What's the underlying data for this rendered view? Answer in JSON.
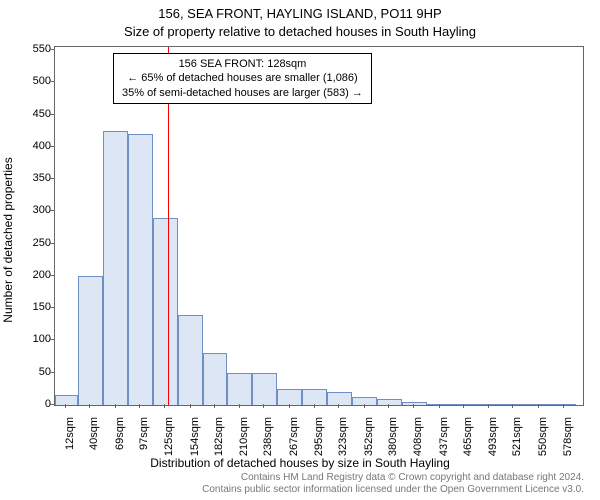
{
  "title_main": "156, SEA FRONT, HAYLING ISLAND, PO11 9HP",
  "title_sub": "Size of property relative to detached houses in South Hayling",
  "y_axis_title": "Number of detached properties",
  "x_axis_title": "Distribution of detached houses by size in South Hayling",
  "footer_line1": "Contains HM Land Registry data © Crown copyright and database right 2024.",
  "footer_line2": "Contains public sector information licensed under the Open Government Licence v3.0.",
  "chart": {
    "type": "histogram",
    "background_color": "#ffffff",
    "border_color": "#666666",
    "bar_fill": "#dde6f4",
    "bar_stroke": "#6f8fc5",
    "bar_stroke_width": 1,
    "ref_line_color": "#ff0000",
    "ref_line_x": 128,
    "ylim": [
      0,
      555
    ],
    "yticks": [
      0,
      50,
      100,
      150,
      200,
      250,
      300,
      350,
      400,
      450,
      500,
      550
    ],
    "x_min": 0,
    "x_max": 600,
    "xticks": [
      12,
      40,
      69,
      97,
      125,
      154,
      182,
      210,
      238,
      267,
      295,
      323,
      352,
      380,
      408,
      437,
      465,
      493,
      521,
      550,
      578
    ],
    "xtick_labels": [
      "12sqm",
      "40sqm",
      "69sqm",
      "97sqm",
      "125sqm",
      "154sqm",
      "182sqm",
      "210sqm",
      "238sqm",
      "267sqm",
      "295sqm",
      "323sqm",
      "352sqm",
      "380sqm",
      "408sqm",
      "437sqm",
      "465sqm",
      "493sqm",
      "521sqm",
      "550sqm",
      "578sqm"
    ],
    "bin_edges": [
      0,
      26,
      54.5,
      83,
      111,
      139.5,
      168,
      196,
      224,
      252.5,
      281,
      309,
      337.5,
      366,
      394,
      422.5,
      451,
      479,
      507.5,
      536,
      564,
      592
    ],
    "bin_values": [
      15,
      200,
      425,
      420,
      290,
      140,
      80,
      50,
      50,
      25,
      25,
      20,
      12,
      10,
      5,
      2,
      2,
      2,
      1,
      1,
      1
    ],
    "label_fontsize": 12,
    "tick_fontsize": 11,
    "title_fontsize": 13
  },
  "annotation": {
    "line1": "156 SEA FRONT: 128sqm",
    "line2": "← 65% of detached houses are smaller (1,086)",
    "line3": "35% of semi-detached houses are larger (583) →",
    "fontsize": 11,
    "border_color": "#000000",
    "background_color": "#ffffff"
  }
}
